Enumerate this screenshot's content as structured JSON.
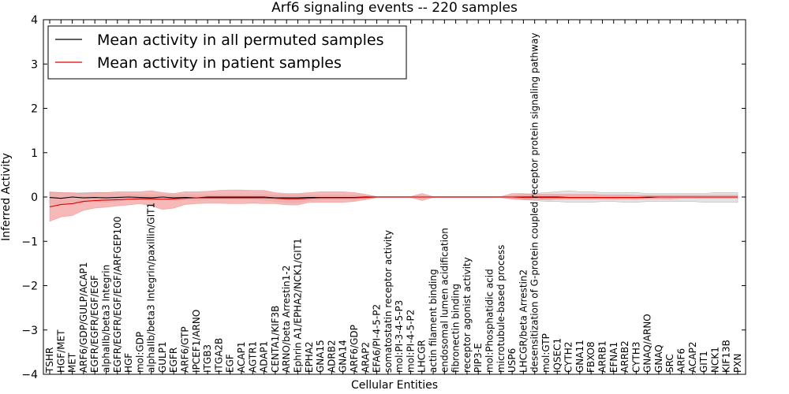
{
  "chart_data": {
    "type": "line",
    "title": "Arf6 signaling events -- 220 samples",
    "xlabel": "Cellular Entities",
    "ylabel": "Inferred Activity",
    "ylim": [
      -4,
      4
    ],
    "yticks": [
      -4,
      -3,
      -2,
      -1,
      0,
      1,
      2,
      3,
      4
    ],
    "ytick_labels": [
      "−4",
      "−3",
      "−2",
      "−1",
      "0",
      "1",
      "2",
      "3",
      "4"
    ],
    "grid": false,
    "legend_position": "top-left",
    "categories": [
      "TSHR",
      "HGF/MET",
      "MET",
      "ARF6/GDP/GULP/ACAP1",
      "EGFR/EGFR/EGF/EGF",
      "alphaIIb/beta3 Integrin",
      "EGFR/EGFR/EGF/EGF/ARFGEP100",
      "HGF",
      "mol:GDP",
      "alphaIIb/beta3 Integrin/paxillin/GIT1",
      "GULP1",
      "EGFR",
      "ARF6/GTP",
      "IPCEF1/ARNO",
      "ITGB3",
      "ITGA2B",
      "EGF",
      "ACAP1",
      "AGTR1",
      "ADAP1",
      "CENTA1/KIF3B",
      "ARNO/beta Arrestin1-2",
      "Ephrin A1/EPHA2/NCK1/GIT1",
      "EPHA2",
      "GNA15",
      "ADRB2",
      "GNA14",
      "ARF6/GDP",
      "ARAP2",
      "EFA6/PI-4-5-P2",
      "somatostatin receptor activity",
      "mol:PI-3-4-5-P3",
      "mol:PI-4-5-P2",
      "LHCGR",
      "actin filament binding",
      "endosomal lumen acidification",
      "fibronectin binding",
      "receptor agonist activity",
      "PIP3-E",
      "mol:Phosphatidic acid",
      "microtubule-based process",
      "USP6",
      "LHCGR/beta Arrestin2",
      "desensitization of G-protein coupled receptor protein signaling pathway",
      "mol:GTP",
      "IQSEC1",
      "CYTH2",
      "GNA11",
      "FBXO8",
      "ARRB1",
      "EFNA1",
      "ARRB2",
      "CYTH3",
      "GNAQ/ARNO",
      "GNAQ",
      "SRC",
      "ARF6",
      "ACAP2",
      "GIT1",
      "NCK1",
      "KIF13B",
      "PXN"
    ],
    "series": [
      {
        "name": "Mean activity in all permuted samples",
        "color": "#000000",
        "values": [
          -0.01,
          -0.03,
          0.0,
          -0.02,
          -0.01,
          -0.02,
          -0.01,
          0.0,
          -0.01,
          -0.02,
          0.0,
          -0.02,
          -0.01,
          -0.02,
          0.0,
          0.0,
          0.0,
          0.0,
          0.0,
          0.0,
          -0.02,
          -0.02,
          -0.02,
          -0.01,
          -0.01,
          -0.01,
          -0.01,
          -0.01,
          0.0,
          0.0,
          0.0,
          0.0,
          0.0,
          0.0,
          0.0,
          0.0,
          0.0,
          0.0,
          0.0,
          0.0,
          0.0,
          0.0,
          0.0,
          0.0,
          0.0,
          0.0,
          -0.01,
          -0.01,
          -0.01,
          -0.01,
          -0.01,
          -0.01,
          -0.01,
          -0.01,
          0.0,
          0.0,
          0.0,
          0.0,
          0.0,
          0.0,
          0.0,
          0.0
        ],
        "lower": [
          -0.15,
          -0.15,
          -0.1,
          -0.12,
          -0.1,
          -0.12,
          -0.1,
          -0.05,
          -0.05,
          -0.08,
          -0.05,
          -0.08,
          -0.06,
          -0.08,
          -0.05,
          -0.05,
          -0.05,
          -0.05,
          -0.05,
          -0.06,
          -0.1,
          -0.12,
          -0.12,
          -0.08,
          -0.06,
          -0.06,
          -0.06,
          -0.06,
          -0.03,
          -0.01,
          -0.01,
          -0.01,
          -0.01,
          -0.02,
          -0.01,
          -0.01,
          -0.01,
          -0.01,
          -0.01,
          -0.01,
          -0.01,
          -0.02,
          -0.06,
          -0.08,
          -0.1,
          -0.1,
          -0.12,
          -0.12,
          -0.12,
          -0.1,
          -0.1,
          -0.12,
          -0.12,
          -0.1,
          -0.1,
          -0.1,
          -0.1,
          -0.1,
          -0.12,
          -0.12,
          -0.12,
          -0.12
        ],
        "upper": [
          0.12,
          0.1,
          0.08,
          0.1,
          0.1,
          0.1,
          0.08,
          0.05,
          0.05,
          0.05,
          0.05,
          0.05,
          0.05,
          0.05,
          0.04,
          0.04,
          0.04,
          0.04,
          0.04,
          0.04,
          0.05,
          0.05,
          0.05,
          0.05,
          0.04,
          0.04,
          0.04,
          0.04,
          0.02,
          0.01,
          0.01,
          0.01,
          0.01,
          0.02,
          0.01,
          0.01,
          0.01,
          0.01,
          0.01,
          0.01,
          0.01,
          0.02,
          0.06,
          0.08,
          0.1,
          0.12,
          0.14,
          0.12,
          0.12,
          0.1,
          0.1,
          0.1,
          0.1,
          0.08,
          0.08,
          0.08,
          0.08,
          0.08,
          0.08,
          0.1,
          0.1,
          0.1
        ]
      },
      {
        "name": "Mean activity in patient samples",
        "color": "#e00000",
        "fill": "#f4a0a0",
        "values": [
          -0.22,
          -0.17,
          -0.15,
          -0.1,
          -0.08,
          -0.07,
          -0.06,
          -0.05,
          -0.04,
          -0.04,
          -0.05,
          -0.04,
          -0.03,
          -0.02,
          -0.02,
          -0.02,
          -0.02,
          -0.02,
          -0.02,
          -0.02,
          -0.03,
          -0.04,
          -0.04,
          -0.03,
          -0.02,
          -0.02,
          -0.02,
          -0.02,
          -0.01,
          0.0,
          0.0,
          0.0,
          0.0,
          0.0,
          0.0,
          0.0,
          0.0,
          0.0,
          0.0,
          0.0,
          0.0,
          0.0,
          -0.01,
          -0.01,
          -0.01,
          -0.01,
          -0.01,
          -0.01,
          -0.01,
          -0.01,
          -0.01,
          -0.01,
          -0.01,
          0.0,
          0.0,
          0.0,
          0.0,
          0.0,
          0.0,
          0.0,
          0.0,
          0.0
        ],
        "lower": [
          -0.55,
          -0.45,
          -0.42,
          -0.3,
          -0.25,
          -0.23,
          -0.2,
          -0.18,
          -0.15,
          -0.2,
          -0.28,
          -0.25,
          -0.17,
          -0.15,
          -0.14,
          -0.14,
          -0.15,
          -0.15,
          -0.14,
          -0.15,
          -0.15,
          -0.18,
          -0.18,
          -0.12,
          -0.12,
          -0.12,
          -0.12,
          -0.1,
          -0.06,
          -0.01,
          -0.01,
          -0.01,
          -0.01,
          -0.08,
          -0.01,
          -0.01,
          -0.01,
          -0.01,
          -0.01,
          -0.01,
          -0.01,
          -0.05,
          -0.06,
          -0.06,
          -0.06,
          -0.05,
          -0.05,
          -0.05,
          -0.05,
          -0.05,
          -0.05,
          -0.05,
          -0.05,
          -0.04,
          -0.04,
          -0.04,
          -0.03,
          -0.03,
          -0.03,
          -0.03,
          -0.03,
          -0.03
        ],
        "upper": [
          0.1,
          0.1,
          0.1,
          0.08,
          0.1,
          0.1,
          0.12,
          0.12,
          0.12,
          0.14,
          0.1,
          0.08,
          0.12,
          0.12,
          0.13,
          0.15,
          0.16,
          0.16,
          0.15,
          0.15,
          0.1,
          0.08,
          0.08,
          0.1,
          0.12,
          0.12,
          0.12,
          0.1,
          0.06,
          0.01,
          0.01,
          0.01,
          0.01,
          0.08,
          0.01,
          0.01,
          0.01,
          0.01,
          0.01,
          0.01,
          0.01,
          0.08,
          0.08,
          0.06,
          0.06,
          0.06,
          0.06,
          0.06,
          0.06,
          0.05,
          0.05,
          0.05,
          0.04,
          0.04,
          0.04,
          0.04,
          0.04,
          0.04,
          0.04,
          0.04,
          0.04,
          0.04
        ]
      }
    ]
  }
}
